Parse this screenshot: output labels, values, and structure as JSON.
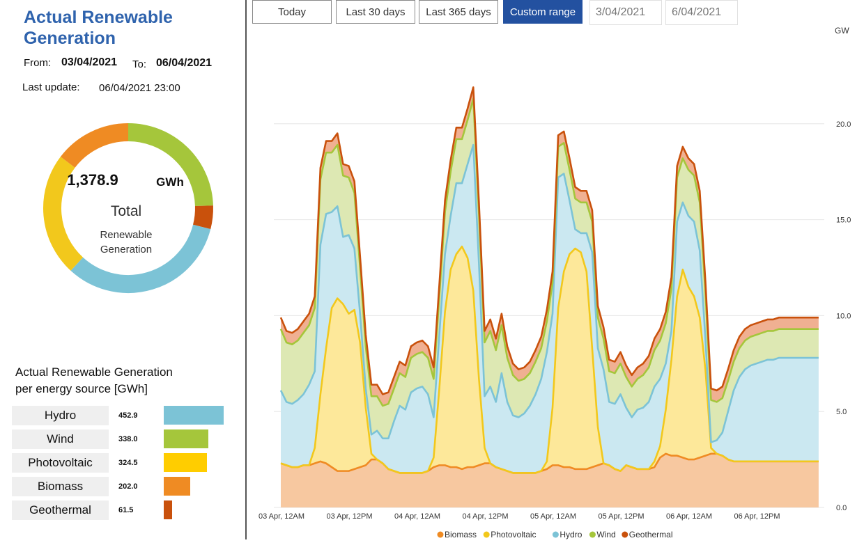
{
  "header": {
    "title": "Actual Renewable Generation",
    "from_label": "From:",
    "from_value": "03/04/2021",
    "to_label": "To:",
    "to_value": "06/04/2021",
    "update_label": "Last  update:",
    "update_value": "06/04/2021 23:00"
  },
  "donut": {
    "total_value": "1,378.9",
    "unit": "GWh",
    "total_label": "Total",
    "sub_label_1": "Renewable",
    "sub_label_2": "Generation",
    "segments": [
      {
        "name": "Wind",
        "value": 338.0,
        "color": "#a5c63b"
      },
      {
        "name": "Geothermal",
        "value": 61.5,
        "color": "#c9510c"
      },
      {
        "name": "Hydro",
        "value": 452.9,
        "color": "#7cc3d6"
      },
      {
        "name": "Photovoltaic",
        "value": 324.5,
        "color": "#f2c81c"
      },
      {
        "name": "Biomass",
        "value": 202.0,
        "color": "#ef8b23"
      }
    ]
  },
  "breakdown": {
    "title_line1": "Actual Renewable Generation",
    "title_line2": "per energy source [GWh]",
    "items": [
      {
        "label": "Hydro",
        "value": "452.9",
        "amount": 452.9,
        "color": "#7cc3d6"
      },
      {
        "label": "Wind",
        "value": "338.0",
        "amount": 338.0,
        "color": "#a5c63b"
      },
      {
        "label": "Photovoltaic",
        "value": "324.5",
        "amount": 324.5,
        "color": "#ffcd00"
      },
      {
        "label": "Biomass",
        "value": "202.0",
        "amount": 202.0,
        "color": "#ef8b23"
      },
      {
        "label": "Geothermal",
        "value": "61.5",
        "amount": 61.5,
        "color": "#c9510c"
      }
    ]
  },
  "controls": {
    "today": "Today",
    "last30": "Last 30 days",
    "last365": "Last 365 days",
    "custom": "Custom range",
    "start_date": "3/04/2021",
    "end_date": "6/04/2021"
  },
  "chart_data": {
    "type": "area",
    "stacked": true,
    "ylabel": "GW",
    "ylim": [
      0,
      25
    ],
    "yticks": [
      0.0,
      5.0,
      10.0,
      15.0,
      20.0
    ],
    "ytick_labels": [
      "0.0",
      "5.0",
      "10.0",
      "15.0",
      "20.0"
    ],
    "xlim": [
      0,
      96
    ],
    "xticks": [
      0,
      12,
      24,
      36,
      48,
      60,
      72,
      84
    ],
    "xtick_labels": [
      "03 Apr, 12AM",
      "03 Apr, 12PM",
      "04 Apr, 12AM",
      "04 Apr, 12PM",
      "05 Apr, 12AM",
      "05 Apr, 12PM",
      "06 Apr, 12AM",
      "06 Apr, 12PM"
    ],
    "grid": true,
    "legend_position": "bottom-center",
    "x": [
      0,
      1,
      2,
      3,
      4,
      5,
      6,
      7,
      8,
      9,
      10,
      11,
      12,
      13,
      14,
      15,
      16,
      17,
      18,
      19,
      20,
      21,
      22,
      23,
      24,
      25,
      26,
      27,
      28,
      29,
      30,
      31,
      32,
      33,
      34,
      35,
      36,
      37,
      38,
      39,
      40,
      41,
      42,
      43,
      44,
      45,
      46,
      47,
      48,
      49,
      50,
      51,
      52,
      53,
      54,
      55,
      56,
      57,
      58,
      59,
      60,
      61,
      62,
      63,
      64,
      65,
      66,
      67,
      68,
      69,
      70,
      71,
      72,
      73,
      74,
      75,
      76,
      77,
      78,
      79,
      80,
      81,
      82,
      83,
      84,
      85,
      86,
      87,
      88,
      89,
      90,
      91,
      92,
      93,
      94,
      95
    ],
    "series": [
      {
        "name": "Biomass",
        "color": "#ef8b23",
        "fill": "#f7c8a0",
        "values": [
          2.3,
          2.2,
          2.1,
          2.1,
          2.2,
          2.2,
          2.3,
          2.4,
          2.3,
          2.1,
          1.9,
          1.9,
          1.9,
          2.0,
          2.1,
          2.2,
          2.5,
          2.5,
          2.3,
          2.0,
          1.9,
          1.8,
          1.8,
          1.8,
          1.8,
          1.8,
          1.9,
          2.1,
          2.2,
          2.2,
          2.1,
          2.1,
          2.0,
          2.1,
          2.1,
          2.2,
          2.3,
          2.3,
          2.1,
          2.0,
          1.9,
          1.8,
          1.8,
          1.8,
          1.8,
          1.8,
          1.9,
          2.0,
          2.2,
          2.2,
          2.1,
          2.1,
          2.0,
          2.0,
          2.0,
          2.1,
          2.2,
          2.3,
          2.2,
          2.0,
          1.9,
          2.2,
          2.1,
          2.0,
          2.0,
          2.0,
          2.1,
          2.6,
          2.8,
          2.7,
          2.7,
          2.6,
          2.5,
          2.5,
          2.6,
          2.7,
          2.8,
          2.8,
          2.7,
          2.5,
          2.4,
          2.4,
          2.4,
          2.4,
          2.4,
          2.4,
          2.4,
          2.4,
          2.4,
          2.4,
          2.4,
          2.4,
          2.4,
          2.4,
          2.4,
          2.4
        ]
      },
      {
        "name": "Photovoltaic",
        "color": "#f2c81c",
        "fill": "#fde89a",
        "values": [
          0,
          0,
          0,
          0,
          0,
          0,
          0.8,
          3.5,
          6.0,
          8.3,
          9.0,
          8.7,
          8.2,
          8.3,
          6.5,
          3.0,
          0.3,
          0,
          0,
          0,
          0,
          0,
          0,
          0,
          0,
          0,
          0,
          0.5,
          4.0,
          8.0,
          10.3,
          11.1,
          11.6,
          10.9,
          9.2,
          4.5,
          0.8,
          0,
          0,
          0,
          0,
          0,
          0,
          0,
          0,
          0,
          0,
          0.4,
          3.0,
          8.2,
          10.2,
          11.1,
          11.5,
          11.3,
          10.3,
          6.2,
          2.0,
          0,
          0,
          0,
          0,
          0,
          0,
          0,
          0,
          0,
          0.3,
          0.6,
          2.3,
          5.0,
          8.3,
          9.8,
          9.0,
          8.5,
          7.3,
          4.5,
          0.3,
          0,
          0,
          0,
          0,
          0,
          0,
          0,
          0,
          0,
          0,
          0,
          0,
          0,
          0,
          0,
          0,
          0,
          0,
          0
        ]
      },
      {
        "name": "Hydro",
        "color": "#7cc3d6",
        "fill": "#cbe8f1",
        "values": [
          3.8,
          3.3,
          3.3,
          3.5,
          3.7,
          4.2,
          4.0,
          7.8,
          7.0,
          5.0,
          4.8,
          3.5,
          4.1,
          3.2,
          1.5,
          1.0,
          1.0,
          1.5,
          1.3,
          1.6,
          2.6,
          3.5,
          3.3,
          4.2,
          4.4,
          4.5,
          4.0,
          2.1,
          2.8,
          3.0,
          2.8,
          3.7,
          3.3,
          4.9,
          7.6,
          6.0,
          2.7,
          4.0,
          3.4,
          5.0,
          3.6,
          3.0,
          2.9,
          3.1,
          3.5,
          4.1,
          4.8,
          5.7,
          4.9,
          6.8,
          5.1,
          2.8,
          1.0,
          1.0,
          2.0,
          5.0,
          4.1,
          4.9,
          3.3,
          3.4,
          4.0,
          3.0,
          2.6,
          3.1,
          3.2,
          3.5,
          3.9,
          3.5,
          2.4,
          1.5,
          3.9,
          3.5,
          3.7,
          3.9,
          3.5,
          1.6,
          0.3,
          0.7,
          1.2,
          2.5,
          3.7,
          4.4,
          4.8,
          5.0,
          5.1,
          5.2,
          5.3,
          5.3,
          5.4,
          5.4,
          5.4,
          5.4,
          5.4,
          5.4,
          5.4,
          5.4
        ]
      },
      {
        "name": "Wind",
        "color": "#a5c63b",
        "fill": "#dde8b3",
        "values": [
          3.2,
          3.1,
          3.1,
          3.1,
          3.2,
          3.1,
          3.3,
          3.4,
          3.2,
          3.1,
          3.2,
          3.2,
          3.0,
          2.9,
          2.4,
          2.2,
          2.0,
          1.8,
          1.7,
          1.8,
          1.7,
          1.7,
          1.7,
          1.8,
          1.8,
          1.8,
          1.9,
          2.0,
          2.0,
          2.2,
          2.3,
          2.3,
          2.3,
          2.3,
          2.4,
          2.6,
          2.8,
          2.9,
          2.7,
          2.5,
          2.3,
          2.1,
          1.9,
          1.8,
          1.7,
          1.7,
          1.6,
          1.6,
          1.6,
          1.6,
          1.6,
          1.6,
          1.6,
          1.6,
          1.6,
          1.6,
          1.6,
          1.6,
          1.6,
          1.6,
          1.6,
          1.6,
          1.6,
          1.6,
          1.7,
          1.8,
          1.9,
          2.0,
          2.1,
          2.2,
          2.3,
          2.3,
          2.4,
          2.4,
          2.5,
          2.4,
          2.2,
          2.0,
          1.8,
          1.6,
          1.5,
          1.5,
          1.5,
          1.5,
          1.5,
          1.5,
          1.5,
          1.5,
          1.5,
          1.5,
          1.5,
          1.5,
          1.5,
          1.5,
          1.5,
          1.5
        ]
      },
      {
        "name": "Geothermal",
        "color": "#c9510c",
        "fill": "#f0b092",
        "values": [
          0.6,
          0.6,
          0.6,
          0.6,
          0.6,
          0.6,
          0.6,
          0.6,
          0.6,
          0.6,
          0.6,
          0.6,
          0.6,
          0.6,
          0.6,
          0.6,
          0.6,
          0.6,
          0.6,
          0.6,
          0.6,
          0.6,
          0.6,
          0.6,
          0.6,
          0.6,
          0.6,
          0.6,
          0.6,
          0.6,
          0.6,
          0.6,
          0.6,
          0.6,
          0.6,
          0.6,
          0.6,
          0.6,
          0.6,
          0.6,
          0.6,
          0.6,
          0.6,
          0.6,
          0.6,
          0.6,
          0.6,
          0.6,
          0.6,
          0.6,
          0.6,
          0.6,
          0.6,
          0.6,
          0.6,
          0.6,
          0.6,
          0.6,
          0.6,
          0.6,
          0.6,
          0.6,
          0.6,
          0.6,
          0.6,
          0.6,
          0.6,
          0.6,
          0.6,
          0.6,
          0.6,
          0.6,
          0.6,
          0.6,
          0.6,
          0.6,
          0.6,
          0.6,
          0.6,
          0.6,
          0.6,
          0.6,
          0.6,
          0.6,
          0.6,
          0.6,
          0.6,
          0.6,
          0.6,
          0.6,
          0.6,
          0.6,
          0.6,
          0.6,
          0.6,
          0.6
        ]
      }
    ]
  }
}
